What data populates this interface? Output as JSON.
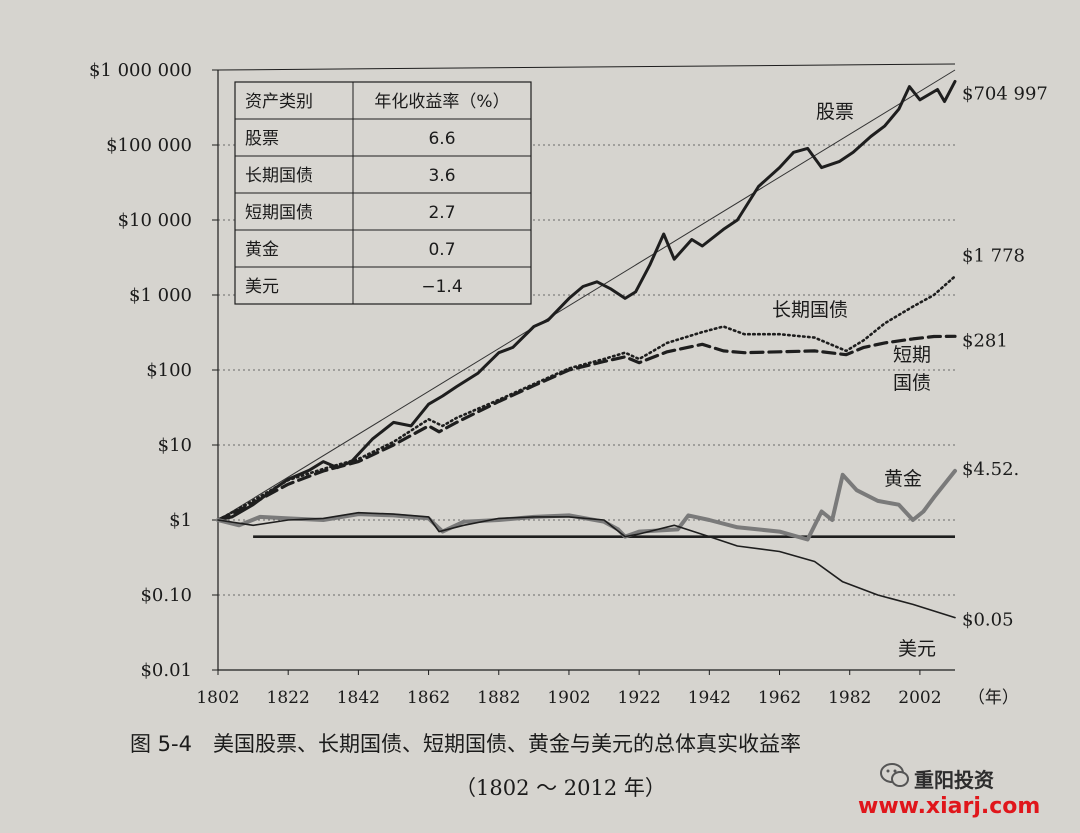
{
  "chart_data": {
    "type": "line",
    "y_scale": "log",
    "ylim": [
      0.01,
      1000000
    ],
    "xlim": [
      1802,
      2012
    ],
    "y_ticks": [
      {
        "value": 1000000,
        "label": "$1 000 000"
      },
      {
        "value": 100000,
        "label": "$100 000"
      },
      {
        "value": 10000,
        "label": "$10 000"
      },
      {
        "value": 1000,
        "label": "$1 000"
      },
      {
        "value": 100,
        "label": "$100"
      },
      {
        "value": 10,
        "label": "$10"
      },
      {
        "value": 1,
        "label": "$1"
      },
      {
        "value": 0.1,
        "label": "$0.10"
      },
      {
        "value": 0.01,
        "label": "$0.01"
      }
    ],
    "x_ticks": [
      "1802",
      "1822",
      "1842",
      "1862",
      "1882",
      "1902",
      "1922",
      "1942",
      "1962",
      "1982",
      "2002"
    ],
    "x_unit": "（年）",
    "grid": "horizontal dashed",
    "series": [
      {
        "name": "股票",
        "end_label": "$704 997",
        "style": "solid-bold",
        "color": "#1e1e1e",
        "points": [
          [
            1802,
            1.0
          ],
          [
            1806,
            1.1
          ],
          [
            1812,
            1.6
          ],
          [
            1818,
            2.6
          ],
          [
            1822,
            3.5
          ],
          [
            1828,
            4.6
          ],
          [
            1832,
            6.0
          ],
          [
            1836,
            5.0
          ],
          [
            1840,
            6.0
          ],
          [
            1846,
            12
          ],
          [
            1852,
            20
          ],
          [
            1857,
            18
          ],
          [
            1862,
            35
          ],
          [
            1866,
            45
          ],
          [
            1870,
            60
          ],
          [
            1876,
            90
          ],
          [
            1882,
            170
          ],
          [
            1886,
            200
          ],
          [
            1892,
            380
          ],
          [
            1896,
            460
          ],
          [
            1902,
            900
          ],
          [
            1906,
            1300
          ],
          [
            1910,
            1500
          ],
          [
            1914,
            1200
          ],
          [
            1918,
            900
          ],
          [
            1921,
            1100
          ],
          [
            1925,
            2500
          ],
          [
            1929,
            6500
          ],
          [
            1932,
            3000
          ],
          [
            1937,
            5500
          ],
          [
            1940,
            4500
          ],
          [
            1946,
            7500
          ],
          [
            1950,
            10000
          ],
          [
            1956,
            28000
          ],
          [
            1962,
            50000
          ],
          [
            1966,
            80000
          ],
          [
            1970,
            90000
          ],
          [
            1974,
            50000
          ],
          [
            1979,
            60000
          ],
          [
            1983,
            80000
          ],
          [
            1988,
            130000
          ],
          [
            1992,
            180000
          ],
          [
            1996,
            300000
          ],
          [
            1999,
            600000
          ],
          [
            2002,
            400000
          ],
          [
            2007,
            550000
          ],
          [
            2009,
            380000
          ],
          [
            2012,
            704997
          ]
        ]
      },
      {
        "name": "长期国债",
        "end_label": "$1 778",
        "style": "dotted",
        "color": "#1e1e1e",
        "points": [
          [
            1802,
            1.0
          ],
          [
            1810,
            1.6
          ],
          [
            1822,
            3.4
          ],
          [
            1832,
            4.8
          ],
          [
            1842,
            6.5
          ],
          [
            1852,
            11
          ],
          [
            1862,
            22
          ],
          [
            1866,
            18
          ],
          [
            1870,
            23
          ],
          [
            1882,
            40
          ],
          [
            1892,
            65
          ],
          [
            1902,
            105
          ],
          [
            1912,
            140
          ],
          [
            1918,
            170
          ],
          [
            1922,
            140
          ],
          [
            1930,
            230
          ],
          [
            1940,
            320
          ],
          [
            1946,
            380
          ],
          [
            1952,
            300
          ],
          [
            1962,
            300
          ],
          [
            1972,
            270
          ],
          [
            1981,
            180
          ],
          [
            1986,
            250
          ],
          [
            1992,
            420
          ],
          [
            2000,
            700
          ],
          [
            2006,
            1000
          ],
          [
            2012,
            1778
          ]
        ]
      },
      {
        "name": "短期国债",
        "end_label": "$281",
        "style": "dashed",
        "color": "#1e1e1e",
        "points": [
          [
            1802,
            1.0
          ],
          [
            1810,
            1.5
          ],
          [
            1822,
            3.0
          ],
          [
            1832,
            4.5
          ],
          [
            1842,
            6.0
          ],
          [
            1852,
            10
          ],
          [
            1862,
            18
          ],
          [
            1865,
            15
          ],
          [
            1870,
            20
          ],
          [
            1882,
            38
          ],
          [
            1892,
            62
          ],
          [
            1902,
            100
          ],
          [
            1912,
            130
          ],
          [
            1918,
            150
          ],
          [
            1922,
            125
          ],
          [
            1930,
            175
          ],
          [
            1940,
            220
          ],
          [
            1946,
            180
          ],
          [
            1952,
            170
          ],
          [
            1962,
            175
          ],
          [
            1972,
            180
          ],
          [
            1981,
            160
          ],
          [
            1986,
            200
          ],
          [
            1992,
            230
          ],
          [
            2000,
            260
          ],
          [
            2006,
            280
          ],
          [
            2012,
            281
          ]
        ]
      },
      {
        "name": "黄金",
        "end_label": "$4.52.",
        "style": "solid-gray",
        "color": "#7a7a7a",
        "points": [
          [
            1802,
            1.0
          ],
          [
            1808,
            0.85
          ],
          [
            1814,
            1.1
          ],
          [
            1822,
            1.05
          ],
          [
            1832,
            1.0
          ],
          [
            1842,
            1.2
          ],
          [
            1852,
            1.15
          ],
          [
            1862,
            1.05
          ],
          [
            1866,
            0.7
          ],
          [
            1872,
            0.95
          ],
          [
            1882,
            1.0
          ],
          [
            1892,
            1.1
          ],
          [
            1902,
            1.15
          ],
          [
            1912,
            0.95
          ],
          [
            1916,
            0.75
          ],
          [
            1918,
            0.6
          ],
          [
            1922,
            0.7
          ],
          [
            1933,
            0.75
          ],
          [
            1936,
            1.15
          ],
          [
            1942,
            1.0
          ],
          [
            1950,
            0.8
          ],
          [
            1962,
            0.7
          ],
          [
            1970,
            0.55
          ],
          [
            1974,
            1.3
          ],
          [
            1977,
            1.0
          ],
          [
            1980,
            4.0
          ],
          [
            1984,
            2.5
          ],
          [
            1990,
            1.8
          ],
          [
            1996,
            1.6
          ],
          [
            2000,
            1.0
          ],
          [
            2003,
            1.3
          ],
          [
            2006,
            2.0
          ],
          [
            2012,
            4.52
          ]
        ]
      },
      {
        "name": "美元",
        "end_label": "$0.05",
        "style": "solid-thin",
        "color": "#1e1e1e",
        "points": [
          [
            1802,
            1.0
          ],
          [
            1812,
            0.85
          ],
          [
            1822,
            1.0
          ],
          [
            1832,
            1.05
          ],
          [
            1842,
            1.25
          ],
          [
            1852,
            1.2
          ],
          [
            1862,
            1.1
          ],
          [
            1865,
            0.7
          ],
          [
            1872,
            0.85
          ],
          [
            1882,
            1.05
          ],
          [
            1892,
            1.1
          ],
          [
            1902,
            1.1
          ],
          [
            1912,
            1.0
          ],
          [
            1918,
            0.6
          ],
          [
            1922,
            0.65
          ],
          [
            1932,
            0.85
          ],
          [
            1942,
            0.6
          ],
          [
            1950,
            0.45
          ],
          [
            1962,
            0.38
          ],
          [
            1972,
            0.28
          ],
          [
            1980,
            0.15
          ],
          [
            1990,
            0.1
          ],
          [
            2000,
            0.075
          ],
          [
            2012,
            0.05
          ]
        ]
      }
    ],
    "reference_lines": [
      {
        "type": "trend",
        "from": [
          1802,
          1.0
        ],
        "to": [
          2012,
          1000000
        ]
      },
      {
        "type": "horizontal",
        "y": 0.6,
        "from_x": 1812,
        "to_x": 2012
      }
    ],
    "inset_table": {
      "headers": [
        "资产类别",
        "年化收益率（%）"
      ],
      "rows": [
        [
          "股票",
          "6.6"
        ],
        [
          "长期国债",
          "3.6"
        ],
        [
          "短期国债",
          "2.7"
        ],
        [
          "黄金",
          "0.7"
        ],
        [
          "美元",
          "−1.4"
        ]
      ]
    }
  },
  "caption": "图 5-4　美国股票、长期国债、短期国债、黄金与美元的总体真实收益率",
  "subcaption": "（1802 ～ 2012 年）",
  "watermark": {
    "name": "重阳投资",
    "url": "www.xiarj.com"
  },
  "colors": {
    "paper": "#d6d4cf",
    "ink": "#1e1e1e",
    "gold_line": "#7a7a7a",
    "watermark_red": "#e0161b"
  }
}
